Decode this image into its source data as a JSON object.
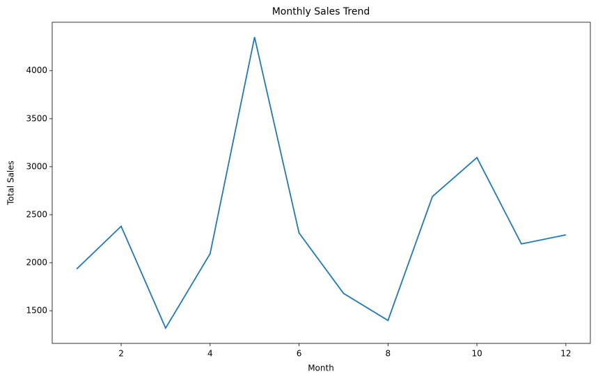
{
  "chart_data": {
    "type": "line",
    "title": "Monthly Sales Trend",
    "x_label": "Month",
    "y_label": "Total Sales",
    "x": [
      1,
      2,
      3,
      4,
      5,
      6,
      7,
      8,
      9,
      10,
      11,
      12
    ],
    "series": [
      {
        "name": "Total Sales",
        "color": "#1f77b4",
        "values": [
          1935,
          2380,
          1319,
          2094,
          4350,
          2310,
          1681,
          1399,
          2690,
          3095,
          2196,
          2290
        ]
      }
    ],
    "xlim": [
      0.45,
      12.55
    ],
    "xticks": [
      2,
      4,
      6,
      8,
      10,
      12
    ],
    "ylim": [
      1160,
      4505
    ],
    "yticks": [
      1500,
      2000,
      2500,
      3000,
      3500,
      4000
    ],
    "grid": false
  }
}
